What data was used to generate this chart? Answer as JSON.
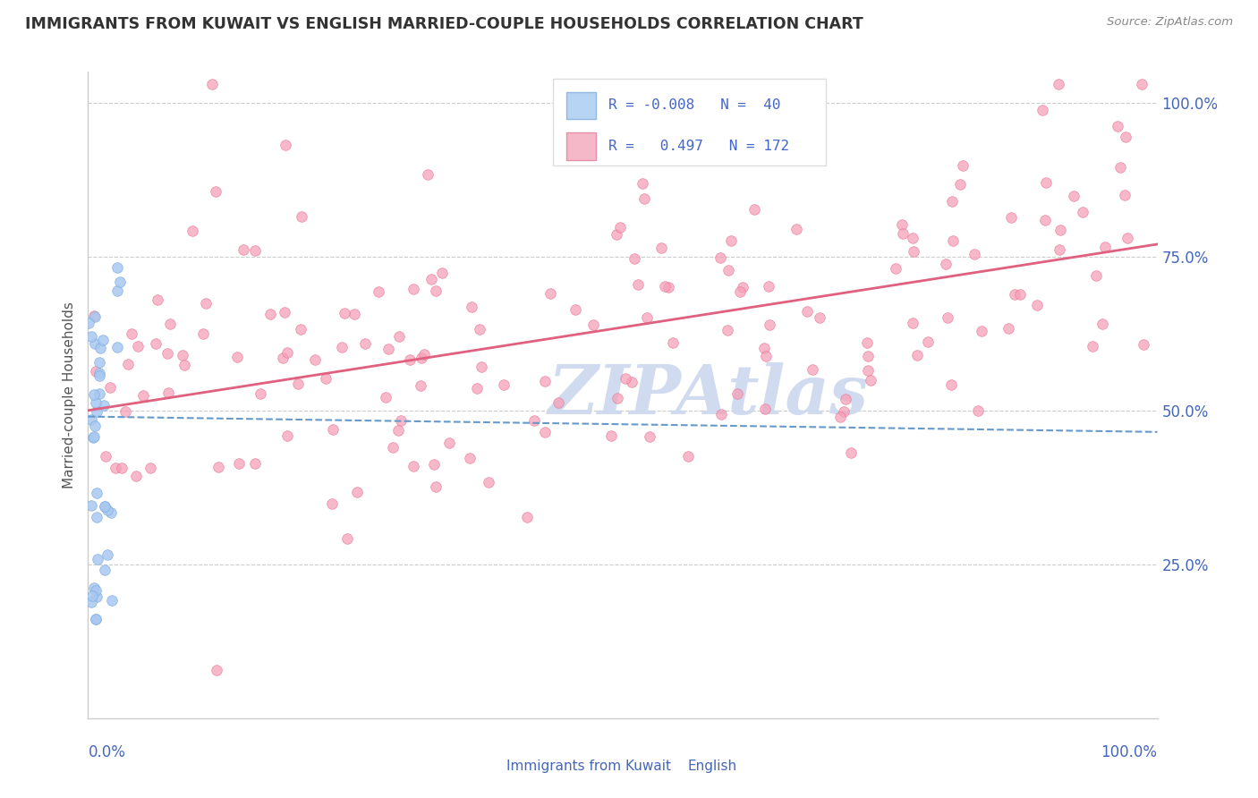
{
  "title": "IMMIGRANTS FROM KUWAIT VS ENGLISH MARRIED-COUPLE HOUSEHOLDS CORRELATION CHART",
  "source": "Source: ZipAtlas.com",
  "ylabel": "Married-couple Households",
  "legend_R_blue": "-0.008",
  "legend_N_blue": "40",
  "legend_R_pink": "0.497",
  "legend_N_pink": "172",
  "blue_line_y0": 49.0,
  "blue_line_y1": 46.5,
  "pink_line_y0": 50.0,
  "pink_line_y1": 77.0,
  "xmin": 0,
  "xmax": 100,
  "ymin": 0,
  "ymax": 105,
  "yticks": [
    25,
    50,
    75,
    100
  ],
  "background_color": "#ffffff",
  "grid_color": "#cccccc",
  "blue_dot_color": "#a8c8f0",
  "blue_dot_edge": "#7aaade",
  "pink_dot_color": "#f5a0b8",
  "pink_dot_edge": "#e87090",
  "blue_line_color": "#6699cc",
  "pink_line_color": "#e06080",
  "title_color": "#333333",
  "source_color": "#888888",
  "axis_label_color": "#4466bb",
  "ylabel_color": "#555555",
  "watermark_color": "#ccd8ee",
  "legend_text_color": "#4466cc",
  "legend_bg": "#ffffff",
  "legend_border": "#dddddd"
}
